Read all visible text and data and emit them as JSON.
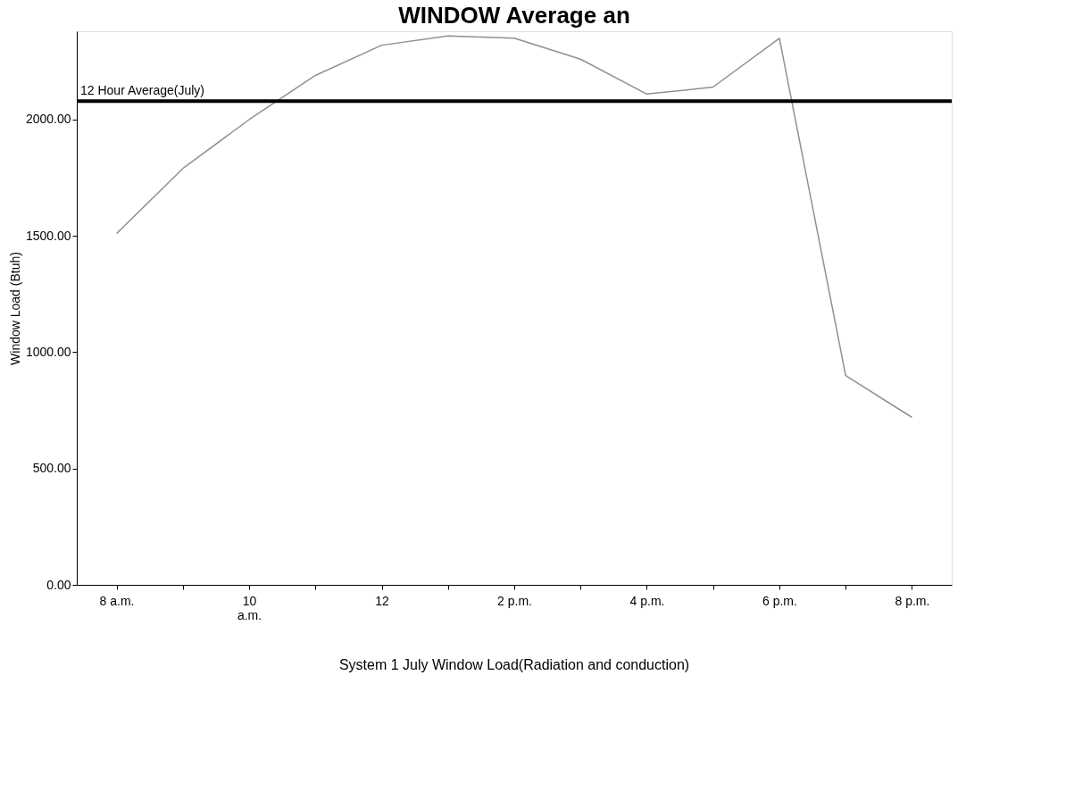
{
  "chart_data": {
    "type": "line",
    "title": "WINDOW Average an",
    "ylabel": "Window Load (Btuh)",
    "categories": [
      "8 a.m.",
      null,
      "10\na.m.",
      null,
      "12",
      null,
      "2 p.m.",
      null,
      "4 p.m.",
      null,
      "6 p.m.",
      null,
      "8 p.m."
    ],
    "series": [
      {
        "color": "#909090",
        "values": [
          1510,
          1790,
          2000,
          2190,
          2320,
          2360,
          2350,
          2260,
          2110,
          2140,
          2350,
          900,
          720
        ]
      }
    ],
    "ylim": [
      0,
      2380
    ],
    "yticks": [
      {
        "value": 0,
        "label": "0.00"
      },
      {
        "value": 500,
        "label": "500.00"
      },
      {
        "value": 1000,
        "label": "1000.00"
      },
      {
        "value": 1500,
        "label": "1500.00"
      },
      {
        "value": 2000,
        "label": "2000.00"
      }
    ],
    "ref_lines": [
      {
        "axis": "y",
        "value": 2080,
        "label": "12 Hour Average(July)",
        "color": "#000000"
      }
    ],
    "annotations": [
      "System 1 July Window Load(Radiation and conduction)"
    ],
    "grid": false,
    "marker": "none",
    "line_style": "solid"
  }
}
